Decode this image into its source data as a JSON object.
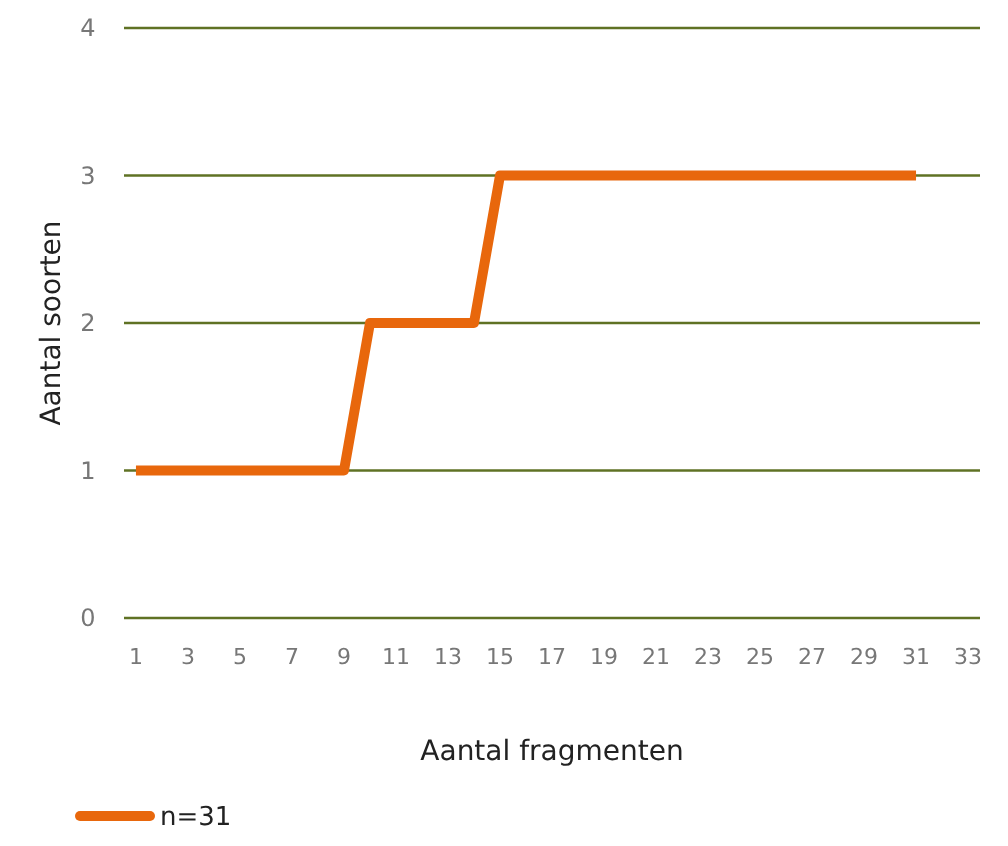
{
  "chart_data": {
    "type": "line",
    "xlabel": "Aantal fragmenten",
    "ylabel": "Aantal soorten",
    "x": [
      1,
      9,
      10,
      14,
      15,
      31
    ],
    "series": [
      {
        "name": "n=31",
        "color": "#e8670c",
        "values": [
          1,
          1,
          2,
          2,
          3,
          3
        ]
      }
    ],
    "xlim": [
      0.54,
      33.46
    ],
    "xticks": [
      1,
      3,
      5,
      7,
      9,
      11,
      13,
      15,
      17,
      19,
      21,
      23,
      25,
      27,
      29,
      31,
      33
    ],
    "ylim": [
      0,
      4
    ],
    "yticks": [
      0,
      1,
      2,
      3,
      4
    ],
    "grid": "y",
    "legend": "bottom",
    "marker": "none",
    "line_style": "solid"
  }
}
